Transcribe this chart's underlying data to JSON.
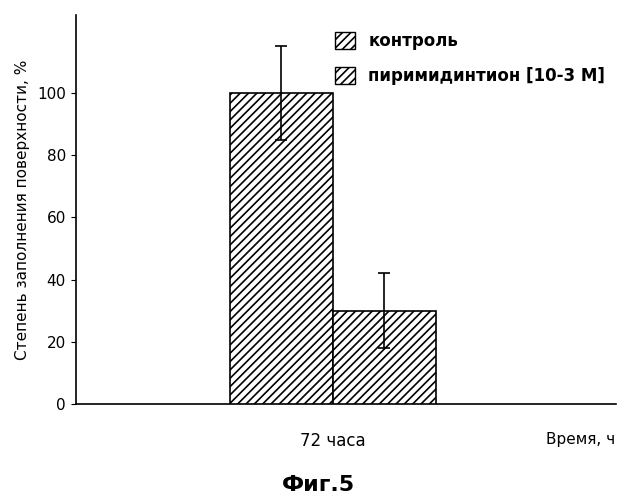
{
  "values": [
    100,
    30
  ],
  "errors_up": [
    15,
    12
  ],
  "errors_down": [
    15,
    12
  ],
  "x_tick_label": "72 часа",
  "xlabel_axis": "Время, ч",
  "ylabel": "Степень заполнения поверхности, %",
  "ylim": [
    0,
    125
  ],
  "yticks": [
    0,
    20,
    40,
    60,
    80,
    100
  ],
  "bar_facecolor": "#ffffff",
  "bar_edgecolor": "#000000",
  "hatch": "////",
  "figure_title": "Фиг.5",
  "legend_labels": [
    "контроль",
    "пиримидинтион [10-3 М]"
  ],
  "bar_width": 0.32,
  "background_color": "#ffffff",
  "title_fontsize": 16,
  "ylabel_fontsize": 11,
  "tick_fontsize": 11,
  "legend_fontsize": 12,
  "xlabel_fontsize": 11
}
